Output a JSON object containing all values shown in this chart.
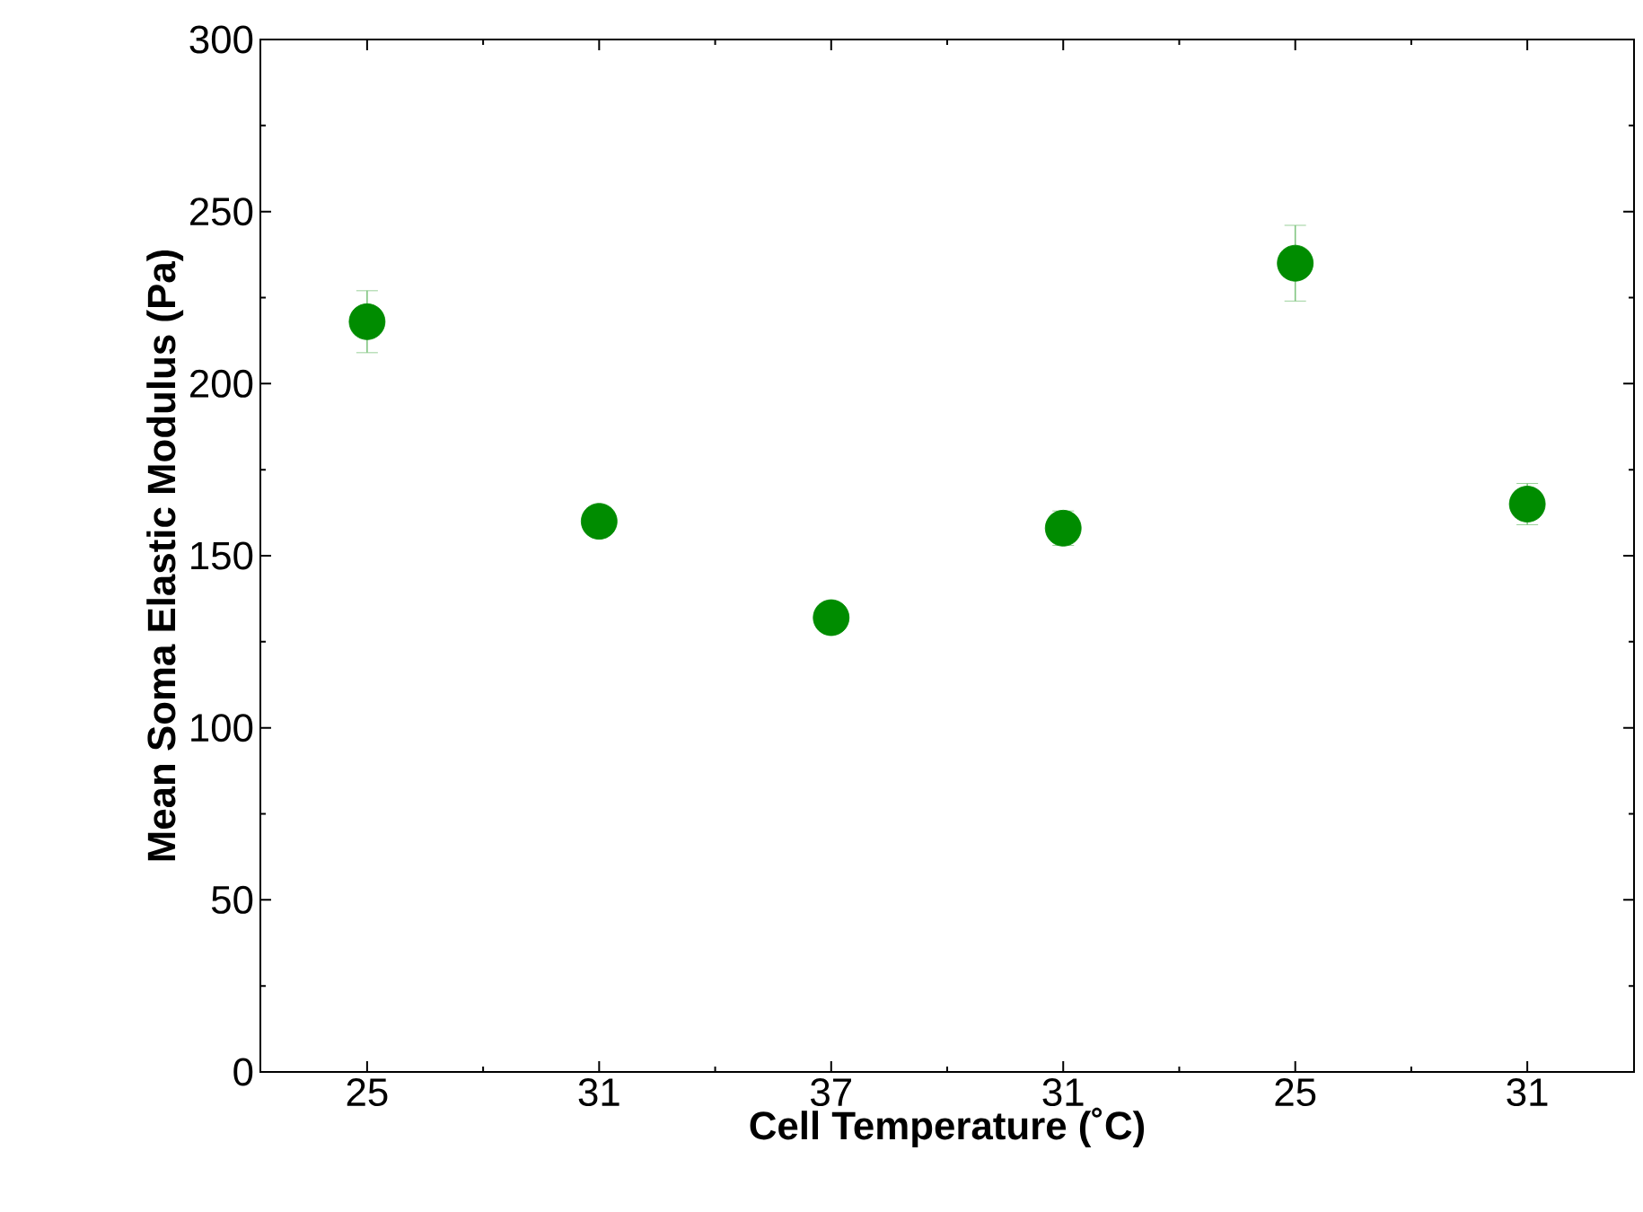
{
  "chart_data": {
    "type": "scatter",
    "xlabel": "Cell Temperature (˚C)",
    "ylabel": "Mean Soma Elastic Modulus (Pa)",
    "categories": [
      "25",
      "31",
      "37",
      "31",
      "25",
      "31"
    ],
    "values": [
      218,
      160,
      132,
      158,
      235,
      165
    ],
    "errors": [
      9,
      4,
      4,
      5,
      11,
      6
    ],
    "color": "#008c00",
    "marker": "circle",
    "ylim": [
      0,
      300
    ],
    "yticks": [
      0,
      50,
      100,
      150,
      200,
      250,
      300
    ]
  }
}
